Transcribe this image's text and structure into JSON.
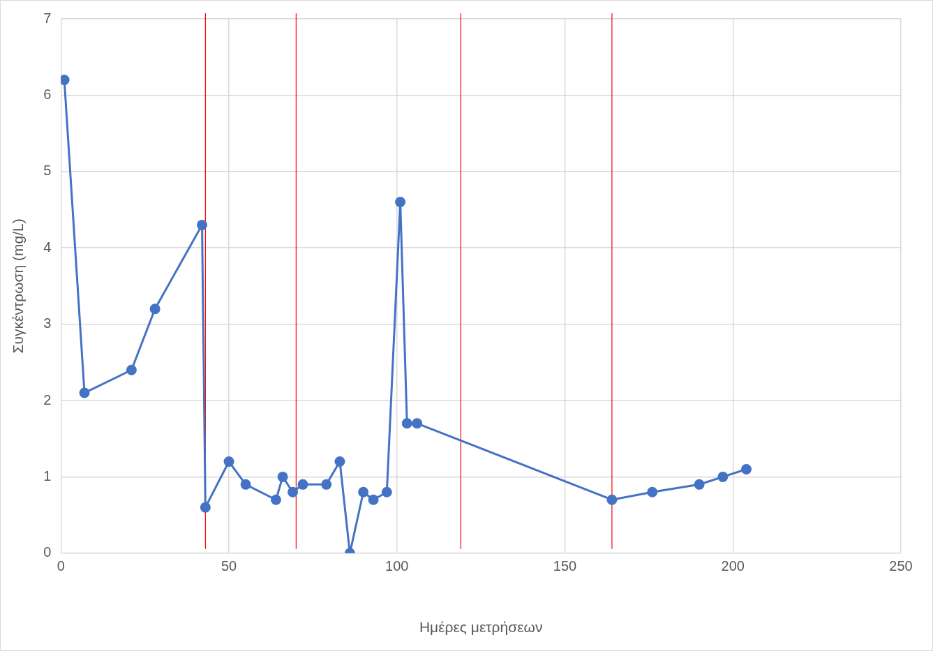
{
  "chart_data": {
    "type": "line",
    "xlabel": "Ημέρες μετρήσεων",
    "ylabel": "Συγκέντρωση (mg/L)",
    "x": [
      1,
      7,
      21,
      28,
      42,
      43,
      50,
      55,
      64,
      66,
      69,
      72,
      79,
      83,
      86,
      90,
      93,
      97,
      101,
      103,
      106,
      164,
      176,
      190,
      197,
      204
    ],
    "series": [
      {
        "color": "#4472c4",
        "values": [
          6.2,
          2.1,
          2.4,
          3.2,
          4.3,
          0.6,
          1.2,
          0.9,
          0.7,
          1.0,
          0.8,
          0.9,
          0.9,
          1.2,
          0,
          0.8,
          0.7,
          0.8,
          4.6,
          1.7,
          1.7,
          0.7,
          0.8,
          0.9,
          1.0,
          1.1
        ]
      }
    ],
    "xlim": [
      0,
      250
    ],
    "xticks": [
      0,
      50,
      100,
      150,
      200,
      250
    ],
    "ylim": [
      0,
      7
    ],
    "yticks": [
      0,
      1,
      2,
      3,
      4,
      5,
      6,
      7
    ],
    "grid": true,
    "legend": false,
    "marker": "circle",
    "line_style": "solid",
    "ref_lines": [
      {
        "axis": "x",
        "value": 43,
        "color": "#ff0000"
      },
      {
        "axis": "x",
        "value": 70,
        "color": "#ff0000"
      },
      {
        "axis": "x",
        "value": 119,
        "color": "#ff0000"
      },
      {
        "axis": "x",
        "value": 164,
        "color": "#ff0000"
      }
    ]
  }
}
